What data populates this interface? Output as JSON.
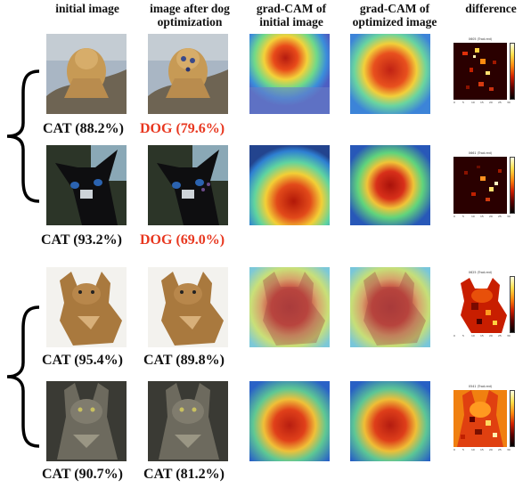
{
  "headers": {
    "initial": "initial image",
    "after": "image after dog\noptimization",
    "cam_initial": "grad-CAM of\ninitial image",
    "cam_optimized": "grad-CAM of\noptimized image",
    "difference": "difference"
  },
  "rows": [
    {
      "initial_label": "CAT (88.2%)",
      "after_label": "DOG (79.6%)",
      "after_color": "#e8371f",
      "diff_title": "0605 (Trad.red)"
    },
    {
      "initial_label": "CAT (93.2%)",
      "after_label": "DOG (69.0%)",
      "after_color": "#e8371f",
      "diff_title": "0661 (Trad.red)"
    },
    {
      "initial_label": "CAT (95.4%)",
      "after_label": "CAT (89.8%)",
      "after_color": "#111111",
      "diff_title": "0625 (Trad.red)"
    },
    {
      "initial_label": "CAT (90.7%)",
      "after_label": "CAT (81.2%)",
      "after_color": "#111111",
      "diff_title": "0541 (Trad.red)"
    }
  ],
  "axis_ticks": [
    "0",
    "5",
    "10",
    "15",
    "20",
    "25",
    "30"
  ]
}
